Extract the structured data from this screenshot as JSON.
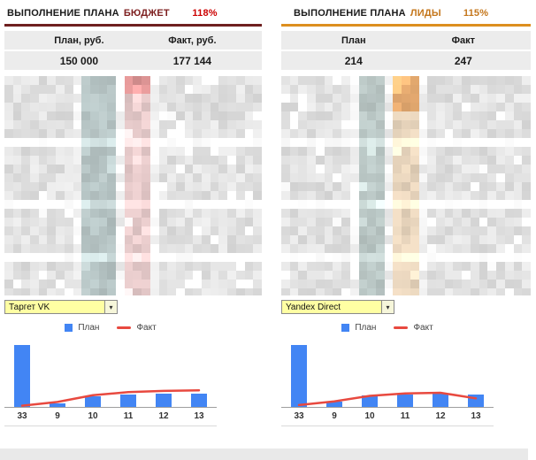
{
  "icons": {
    "chevron_down": "▾"
  },
  "panels": [
    {
      "title_prefix": "ВЫПОЛНЕНИЕ ПЛАНА",
      "title_accent": "БЮДЖЕТ",
      "percent": "118%",
      "colors": {
        "accent": "#7d1f1f",
        "percent": "#cc0000",
        "rule": "#6e2020"
      },
      "stats": {
        "plan_header": "План, руб.",
        "fact_header": "Факт, руб.",
        "plan_value": "150 000",
        "fact_value": "177 144"
      },
      "filter": {
        "value": "Таргет VK"
      }
    },
    {
      "title_prefix": "ВЫПОЛНЕНИЕ ПЛАНА",
      "title_accent": "ЛИДЫ",
      "percent": "115%",
      "colors": {
        "accent": "#c4761b",
        "percent": "#c4761b",
        "rule": "#dd8f1f"
      },
      "stats": {
        "plan_header": "План",
        "fact_header": "Факт",
        "plan_value": "214",
        "fact_value": "247"
      },
      "filter": {
        "value": "Yandex Direct"
      }
    }
  ],
  "chart_data": [
    {
      "type": "bar",
      "title": "",
      "categories": [
        "33",
        "9",
        "10",
        "11",
        "12",
        "13"
      ],
      "series": [
        {
          "name": "План",
          "type": "bar",
          "color": "#4285f4",
          "values": [
            100,
            6,
            18,
            20,
            21,
            22
          ]
        },
        {
          "name": "Факт",
          "type": "line",
          "color": "#e8493f",
          "values": [
            2,
            8,
            19,
            24,
            26,
            27
          ]
        }
      ],
      "ylim": [
        0,
        105
      ],
      "legend_position": "top",
      "grid": false,
      "note": "y-axis unlabeled in source; values are relative (% of tallest bar)"
    },
    {
      "type": "bar",
      "title": "",
      "categories": [
        "33",
        "9",
        "10",
        "11",
        "12",
        "13"
      ],
      "series": [
        {
          "name": "План",
          "type": "bar",
          "color": "#4285f4",
          "values": [
            100,
            8,
            19,
            20,
            22,
            20
          ]
        },
        {
          "name": "Факт",
          "type": "line",
          "color": "#e8493f",
          "values": [
            3,
            9,
            18,
            22,
            23,
            14
          ]
        }
      ],
      "ylim": [
        0,
        105
      ],
      "legend_position": "top",
      "grid": false,
      "note": "y-axis unlabeled in source; values are relative (% of tallest bar)"
    }
  ]
}
